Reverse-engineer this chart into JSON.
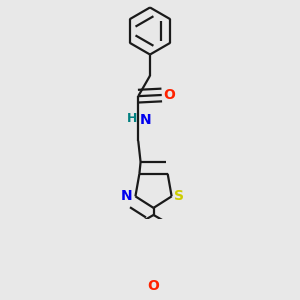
{
  "background_color": "#e8e8e8",
  "bond_color": "#1a1a1a",
  "atom_colors": {
    "O": "#ff2200",
    "N": "#0000ee",
    "S": "#cccc00",
    "H": "#008080",
    "C": "#1a1a1a"
  },
  "line_width": 1.6,
  "dbo": 0.018,
  "figsize": [
    3.0,
    3.0
  ],
  "dpi": 100
}
